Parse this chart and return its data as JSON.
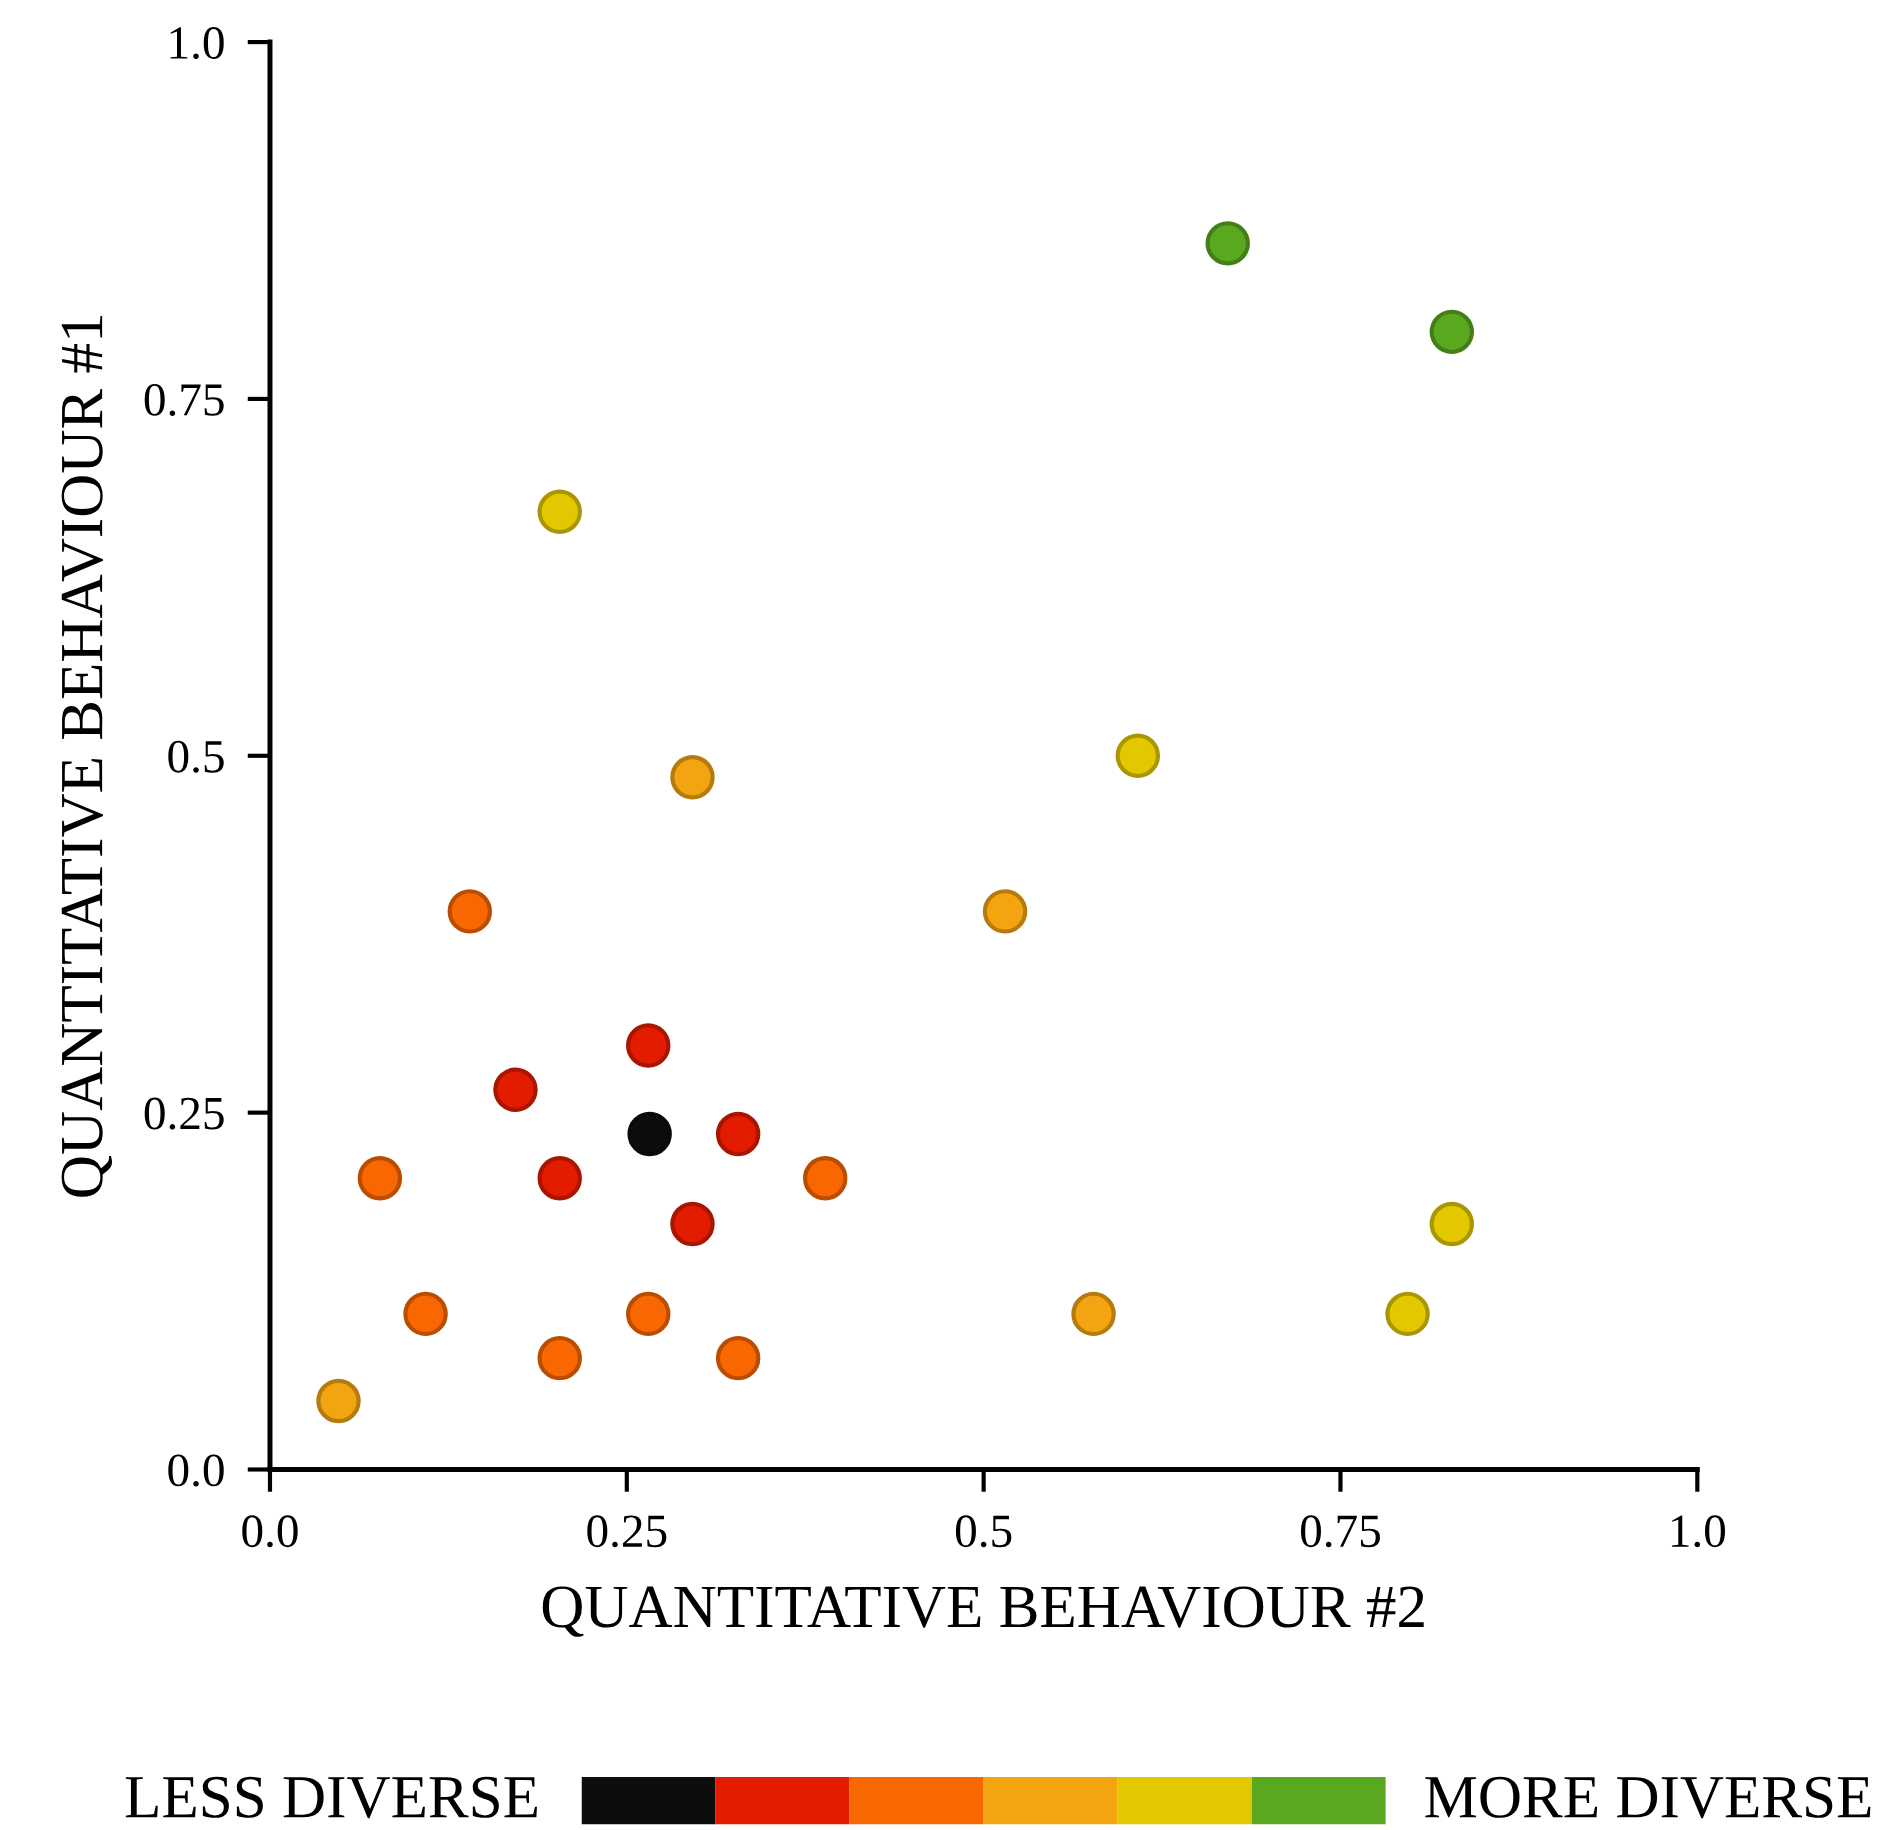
{
  "chart_data": {
    "type": "scatter",
    "xlabel": "QUANTITATIVE BEHAVIOUR #2",
    "ylabel": "QUANTITATIVE BEHAVIOUR #1",
    "xlim": [
      0,
      1
    ],
    "ylim": [
      0,
      1
    ],
    "xticks": [
      {
        "value": 0,
        "label": "0.0"
      },
      0.25,
      0.5,
      0.75,
      {
        "value": 1,
        "label": "1.0"
      }
    ],
    "yticks": [
      {
        "value": 0,
        "label": "0.0"
      },
      0.25,
      0.5,
      0.75,
      {
        "value": 1,
        "label": "1.0"
      }
    ],
    "marker": "circle",
    "grid": false,
    "annotations": [
      "LESS DIVERSE",
      "MORE DIVERSE"
    ],
    "series": [
      {
        "color": "#0d0d0d",
        "x": [
          0.266
        ],
        "values": [
          0.235
        ]
      },
      {
        "color": "#e31c00",
        "x": [
          0.265,
          0.172,
          0.203,
          0.296,
          0.328
        ],
        "values": [
          0.297,
          0.266,
          0.204,
          0.172,
          0.235
        ]
      },
      {
        "color": "#f86700",
        "x": [
          0.14,
          0.077,
          0.109,
          0.203,
          0.265,
          0.328,
          0.389
        ],
        "values": [
          0.391,
          0.204,
          0.109,
          0.078,
          0.109,
          0.078,
          0.204
        ]
      },
      {
        "color": "#f2a411",
        "x": [
          0.048,
          0.296,
          0.515,
          0.577
        ],
        "values": [
          0.048,
          0.485,
          0.391,
          0.109
        ]
      },
      {
        "color": "#e3c800",
        "x": [
          0.203,
          0.608,
          0.828,
          0.797
        ],
        "values": [
          0.671,
          0.5,
          0.172,
          0.109
        ]
      },
      {
        "color": "#5aa81e",
        "x": [
          0.671,
          0.828
        ],
        "values": [
          0.859,
          0.797
        ]
      }
    ]
  }
}
